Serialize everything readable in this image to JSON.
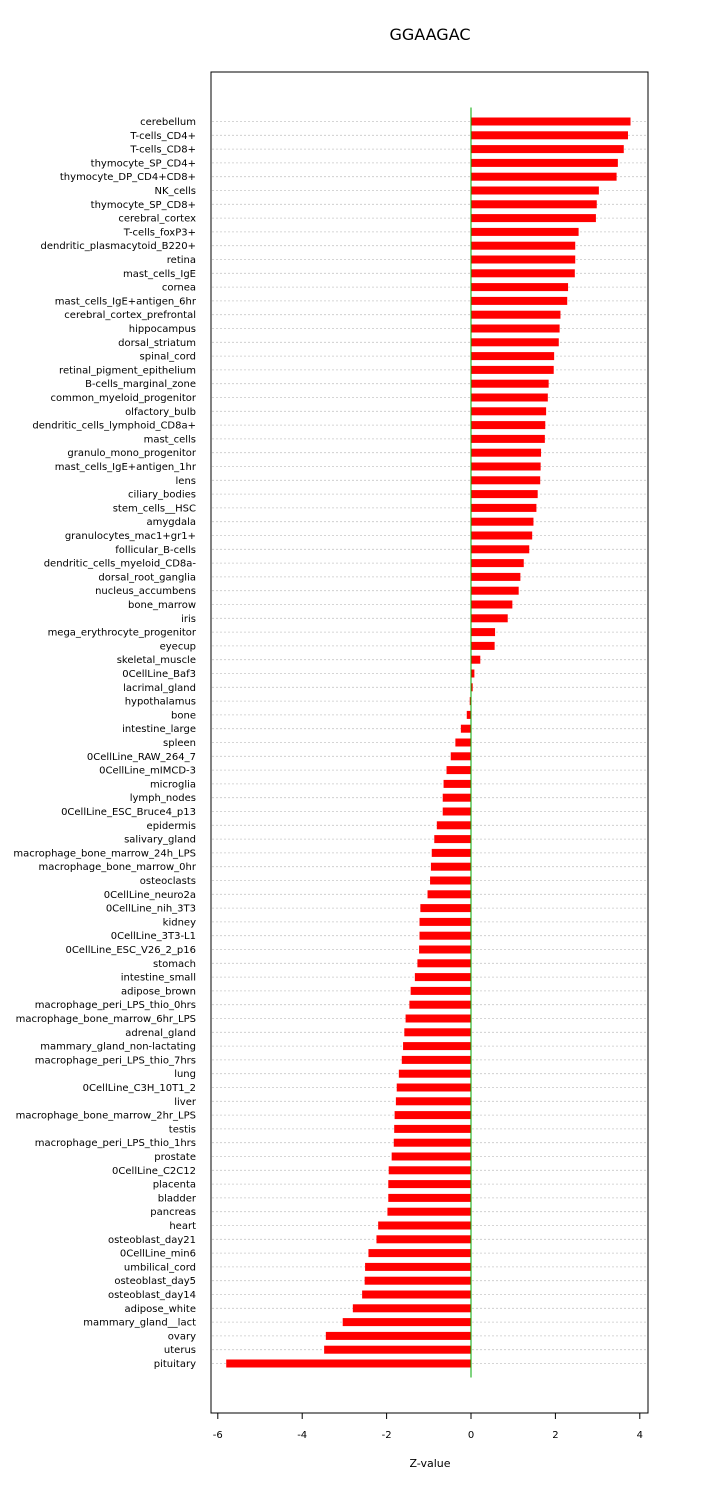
{
  "chart_data": {
    "type": "bar",
    "orientation": "horizontal",
    "title": "GGAAGAC",
    "xlabel": "Z-value",
    "ylabel": "",
    "xlim": [
      -6.2,
      4.1
    ],
    "xticks": [
      -6,
      -4,
      -2,
      0,
      2,
      4
    ],
    "grid": true,
    "bar_color": "#ff0000",
    "zero_line_color": "#00aa00",
    "categories": [
      "cerebellum",
      "T-cells_CD4+",
      "T-cells_CD8+",
      "thymocyte_SP_CD4+",
      "thymocyte_DP_CD4+CD8+",
      "NK_cells",
      "thymocyte_SP_CD8+",
      "cerebral_cortex",
      "T-cells_foxP3+",
      "dendritic_plasmacytoid_B220+",
      "retina",
      "mast_cells_IgE",
      "cornea",
      "mast_cells_IgE+antigen_6hr",
      "cerebral_cortex_prefrontal",
      "hippocampus",
      "dorsal_striatum",
      "spinal_cord",
      "retinal_pigment_epithelium",
      "B-cells_marginal_zone",
      "common_myeloid_progenitor",
      "olfactory_bulb",
      "dendritic_cells_lymphoid_CD8a+",
      "mast_cells",
      "granulo_mono_progenitor",
      "mast_cells_IgE+antigen_1hr",
      "lens",
      "ciliary_bodies",
      "stem_cells__HSC",
      "amygdala",
      "granulocytes_mac1+gr1+",
      "follicular_B-cells",
      "dendritic_cells_myeloid_CD8a-",
      "dorsal_root_ganglia",
      "nucleus_accumbens",
      "bone_marrow",
      "iris",
      "mega_erythrocyte_progenitor",
      "eyecup",
      "skeletal_muscle",
      "0CellLine_Baf3",
      "lacrimal_gland",
      "hypothalamus",
      "bone",
      "intestine_large",
      "spleen",
      "0CellLine_RAW_264_7",
      "0CellLine_mIMCD-3",
      "microglia",
      "lymph_nodes",
      "0CellLine_ESC_Bruce4_p13",
      "epidermis",
      "salivary_gland",
      "macrophage_bone_marrow_24h_LPS",
      "macrophage_bone_marrow_0hr",
      "osteoclasts",
      "0CellLine_neuro2a",
      "0CellLine_nih_3T3",
      "kidney",
      "0CellLine_3T3-L1",
      "0CellLine_ESC_V26_2_p16",
      "stomach",
      "intestine_small",
      "adipose_brown",
      "macrophage_peri_LPS_thio_0hrs",
      "macrophage_bone_marrow_6hr_LPS",
      "adrenal_gland",
      "mammary_gland_non-lactating",
      "macrophage_peri_LPS_thio_7hrs",
      "lung",
      "0CellLine_C3H_10T1_2",
      "liver",
      "macrophage_bone_marrow_2hr_LPS",
      "testis",
      "macrophage_peri_LPS_thio_1hrs",
      "prostate",
      "0CellLine_C2C12",
      "placenta",
      "bladder",
      "pancreas",
      "heart",
      "osteoblast_day21",
      "0CellLine_min6",
      "umbilical_cord",
      "osteoblast_day5",
      "osteoblast_day14",
      "adipose_white",
      "mammary_gland__lact",
      "ovary",
      "uterus",
      "pituitary"
    ],
    "values": [
      3.78,
      3.72,
      3.62,
      3.48,
      3.45,
      3.03,
      2.98,
      2.96,
      2.55,
      2.47,
      2.47,
      2.46,
      2.3,
      2.28,
      2.12,
      2.1,
      2.08,
      1.97,
      1.96,
      1.84,
      1.82,
      1.78,
      1.76,
      1.75,
      1.66,
      1.65,
      1.64,
      1.58,
      1.55,
      1.48,
      1.45,
      1.38,
      1.25,
      1.17,
      1.13,
      0.98,
      0.87,
      0.57,
      0.56,
      0.22,
      0.08,
      0.04,
      -0.03,
      -0.1,
      -0.24,
      -0.37,
      -0.48,
      -0.58,
      -0.65,
      -0.67,
      -0.67,
      -0.81,
      -0.87,
      -0.93,
      -0.95,
      -0.97,
      -1.03,
      -1.2,
      -1.22,
      -1.22,
      -1.23,
      -1.27,
      -1.33,
      -1.43,
      -1.46,
      -1.55,
      -1.58,
      -1.61,
      -1.64,
      -1.71,
      -1.76,
      -1.78,
      -1.81,
      -1.82,
      -1.83,
      -1.88,
      -1.95,
      -1.96,
      -1.96,
      -1.98,
      -2.2,
      -2.24,
      -2.43,
      -2.51,
      -2.52,
      -2.58,
      -2.8,
      -3.04,
      -3.44,
      -3.48,
      -5.8
    ]
  }
}
